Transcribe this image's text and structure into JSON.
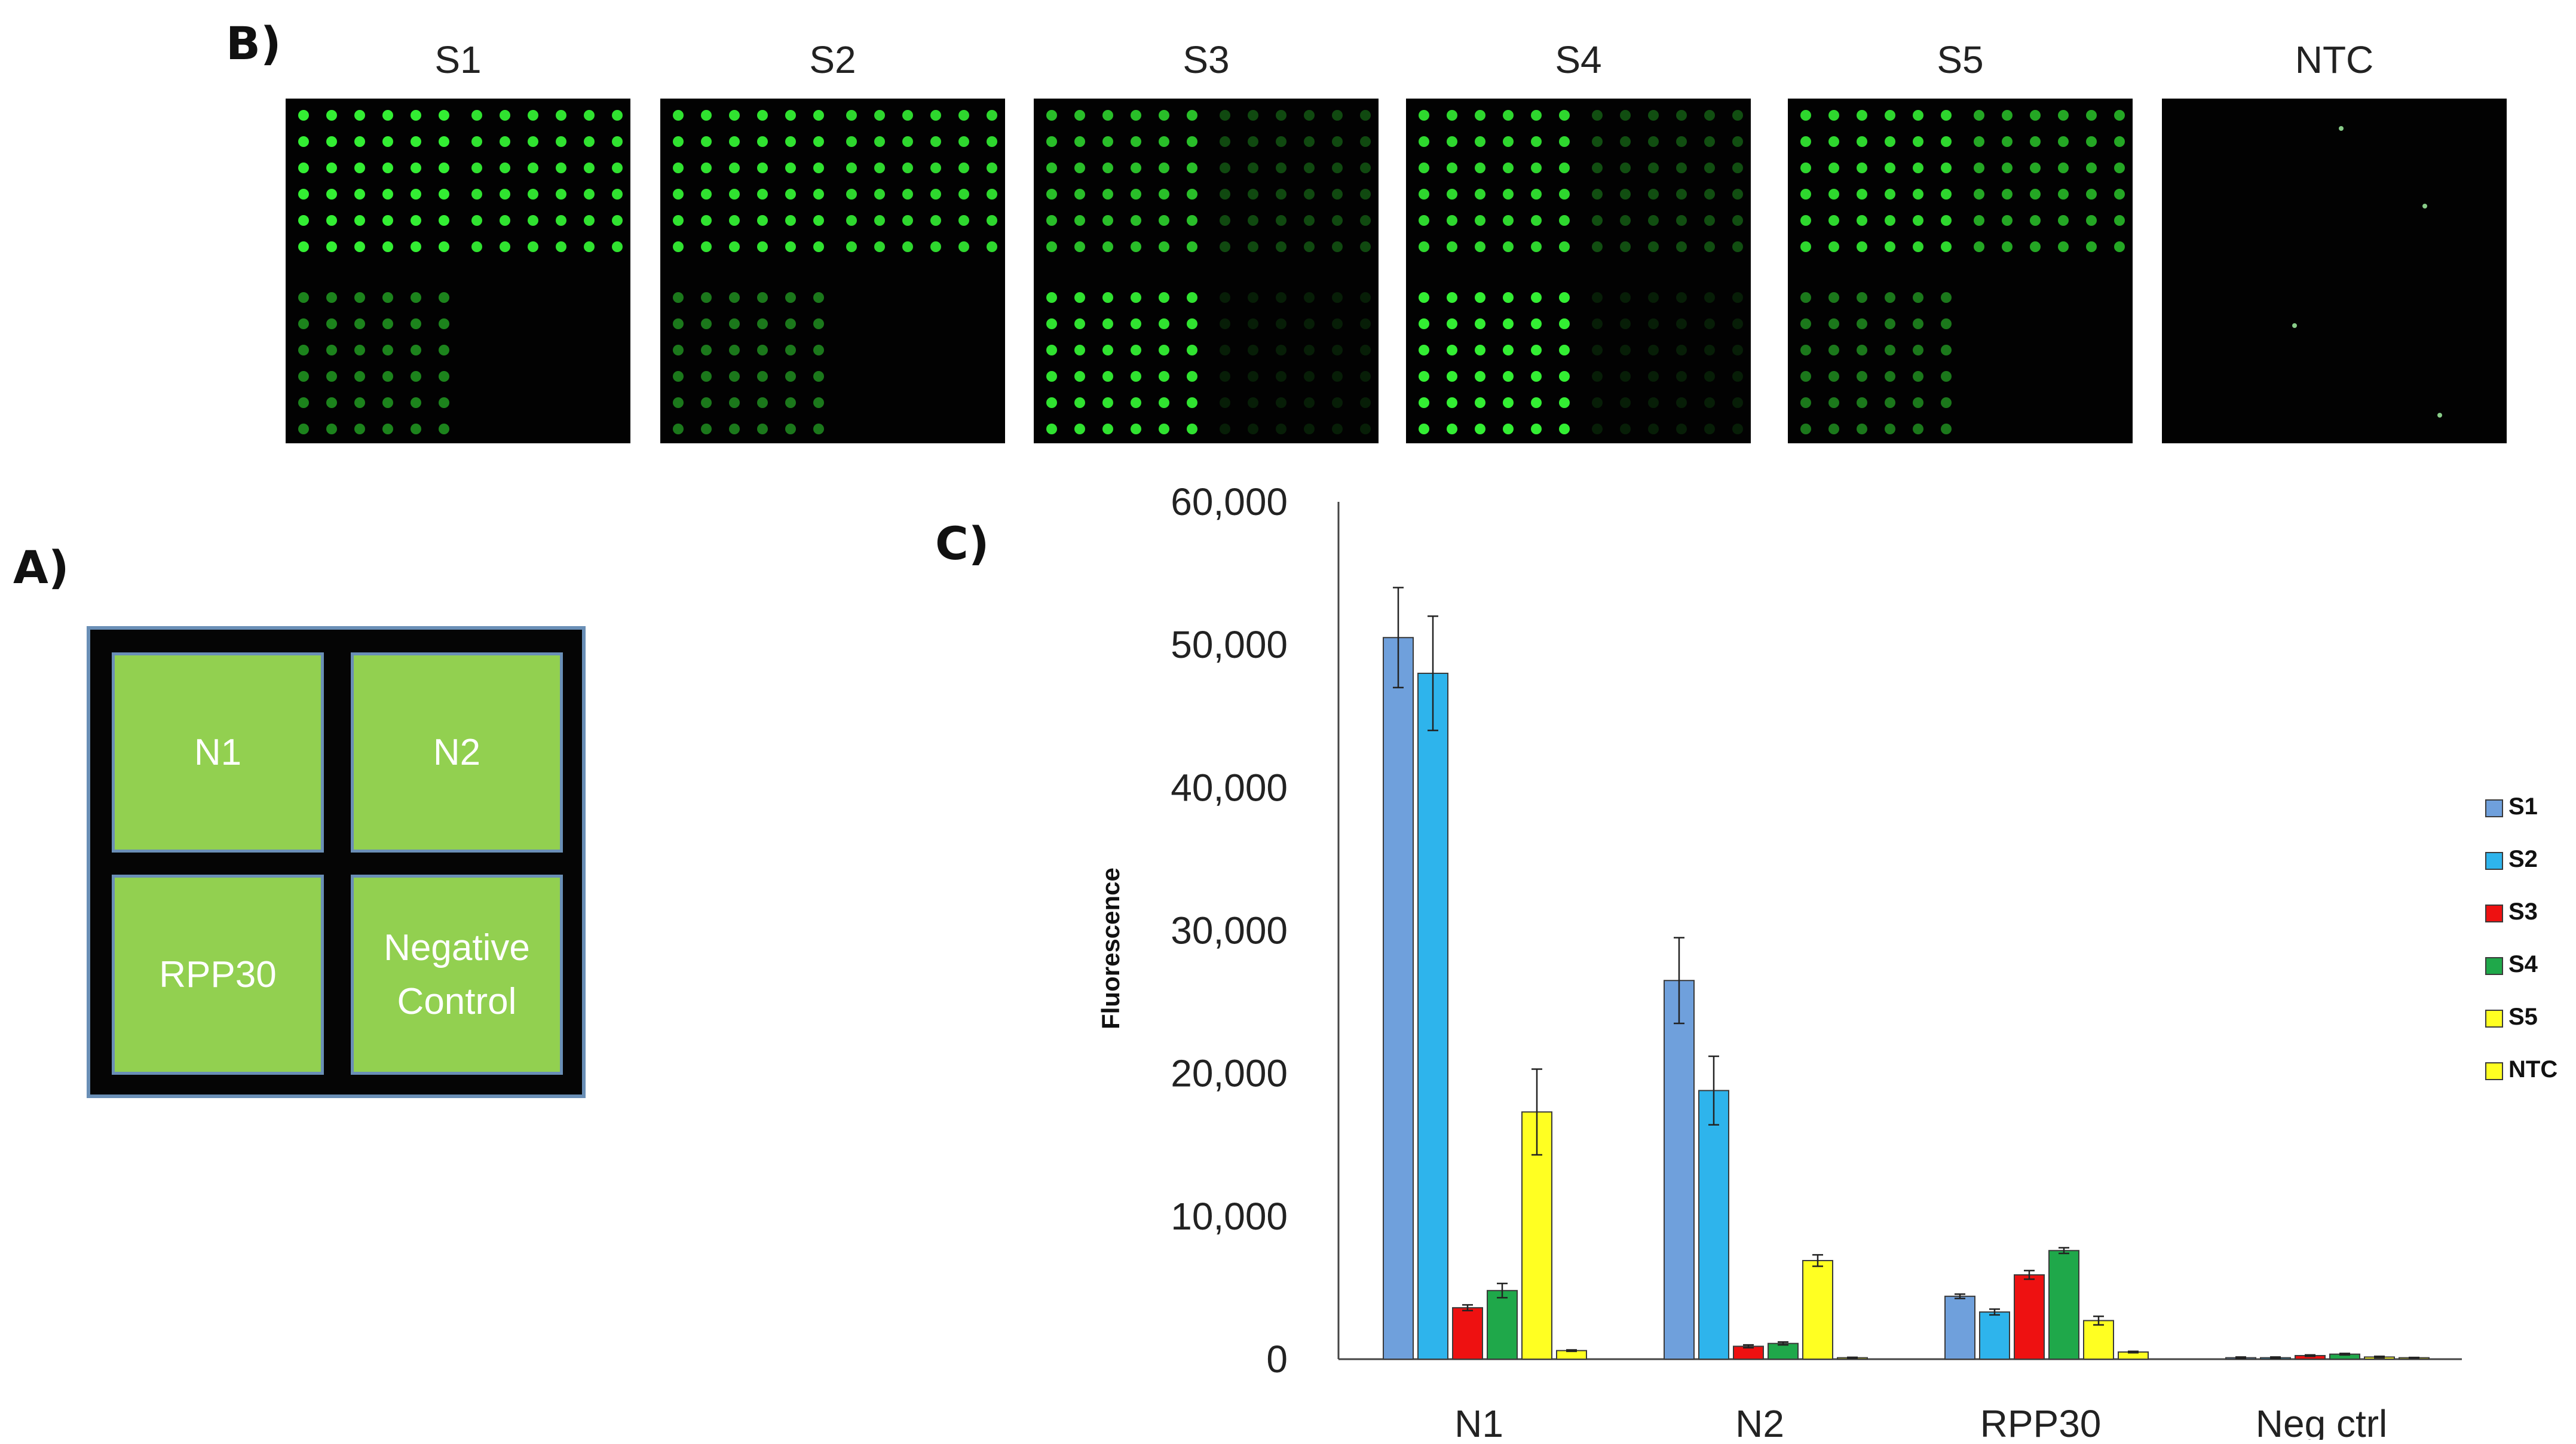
{
  "panel_labels": {
    "a": "A)",
    "b": "B)",
    "c": "C)"
  },
  "images": [
    {
      "title": "S1",
      "intensity": {
        "n1": 1.0,
        "n2": 0.95,
        "rpp30": 0.55,
        "neg": 0.0
      }
    },
    {
      "title": "S2",
      "intensity": {
        "n1": 0.95,
        "n2": 0.9,
        "rpp30": 0.5,
        "neg": 0.0
      }
    },
    {
      "title": "S3",
      "intensity": {
        "n1": 0.8,
        "n2": 0.3,
        "rpp30": 0.95,
        "neg": 0.12
      }
    },
    {
      "title": "S4",
      "intensity": {
        "n1": 0.9,
        "n2": 0.32,
        "rpp30": 1.0,
        "neg": 0.12
      }
    },
    {
      "title": "S5",
      "intensity": {
        "n1": 0.9,
        "n2": 0.7,
        "rpp30": 0.5,
        "neg": 0.0
      }
    },
    {
      "title": "NTC",
      "intensity": {
        "n1": 0.0,
        "n2": 0.0,
        "rpp30": 0.0,
        "neg": 0.0
      }
    }
  ],
  "layout": {
    "cells": [
      "N1",
      "N2",
      "RPP30",
      "Negative\nControl"
    ]
  },
  "colors": {
    "S1": "#6fa0dc",
    "S2": "#2eb4ec",
    "S3": "#ee1111",
    "S4": "#1fa84a",
    "S5": "#ffff22",
    "NTC": "#ffff22",
    "spot": "#33ee33",
    "cell": "#92d050",
    "cell_border": "#6a8fb6"
  },
  "chart_data": {
    "type": "bar",
    "title": "",
    "xlabel": "",
    "ylabel": "Fluorescence",
    "ylim": [
      0,
      60000
    ],
    "yticks": [
      0,
      10000,
      20000,
      30000,
      40000,
      50000,
      60000
    ],
    "ytick_labels": [
      "0",
      "10,000",
      "20,000",
      "30,000",
      "40,000",
      "50,000",
      "60,000"
    ],
    "categories": [
      "N1",
      "N2",
      "RPP30",
      "Neg ctrl"
    ],
    "series": [
      {
        "name": "S1",
        "values": [
          50500,
          26500,
          4400,
          100
        ],
        "errors": [
          3500,
          3000,
          150,
          50
        ]
      },
      {
        "name": "S2",
        "values": [
          48000,
          18800,
          3300,
          100
        ],
        "errors": [
          4000,
          2400,
          200,
          50
        ]
      },
      {
        "name": "S3",
        "values": [
          3600,
          900,
          5900,
          250
        ],
        "errors": [
          200,
          100,
          300,
          50
        ]
      },
      {
        "name": "S4",
        "values": [
          4800,
          1100,
          7600,
          350
        ],
        "errors": [
          500,
          100,
          200,
          50
        ]
      },
      {
        "name": "S5",
        "values": [
          17300,
          6900,
          2700,
          150
        ],
        "errors": [
          3000,
          400,
          300,
          50
        ]
      },
      {
        "name": "NTC",
        "values": [
          600,
          100,
          500,
          100
        ],
        "errors": [
          50,
          30,
          50,
          20
        ]
      }
    ],
    "legend": "right",
    "grid": false
  }
}
